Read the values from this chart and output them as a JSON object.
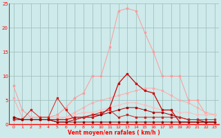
{
  "x": [
    0,
    1,
    2,
    3,
    4,
    5,
    6,
    7,
    8,
    9,
    10,
    11,
    12,
    13,
    14,
    15,
    16,
    17,
    18,
    19,
    20,
    21,
    22,
    23
  ],
  "line_pink_top": [
    8.0,
    3.0,
    1.5,
    1.5,
    1.5,
    2.0,
    3.5,
    5.5,
    6.5,
    10.0,
    10.0,
    16.0,
    23.5,
    24.0,
    23.5,
    19.0,
    15.0,
    10.0,
    10.0,
    10.0,
    5.0,
    5.0,
    2.0,
    2.0
  ],
  "line_pink_mid": [
    5.5,
    1.5,
    1.5,
    1.5,
    1.5,
    1.5,
    1.5,
    2.5,
    3.5,
    4.5,
    5.0,
    5.5,
    6.0,
    6.5,
    7.0,
    7.5,
    7.5,
    7.0,
    6.0,
    5.0,
    4.5,
    3.5,
    2.5,
    2.0
  ],
  "line_pink_low": [
    1.5,
    1.0,
    1.0,
    1.0,
    1.0,
    1.0,
    1.5,
    2.0,
    2.5,
    2.5,
    3.0,
    3.5,
    4.0,
    4.5,
    4.5,
    4.0,
    3.5,
    3.0,
    3.0,
    2.5,
    2.5,
    2.0,
    2.0,
    2.0
  ],
  "line_dark_peak": [
    1.0,
    1.0,
    1.0,
    1.0,
    1.0,
    1.0,
    1.0,
    1.5,
    1.5,
    1.5,
    2.0,
    3.5,
    8.5,
    10.5,
    8.5,
    7.0,
    6.5,
    3.0,
    3.0,
    0.5,
    0.5,
    0.5,
    0.5,
    0.5
  ],
  "line_dark_flat1": [
    1.5,
    1.0,
    1.0,
    1.0,
    1.0,
    0.5,
    0.5,
    1.0,
    1.5,
    2.0,
    2.0,
    2.5,
    3.0,
    3.5,
    3.5,
    3.0,
    2.5,
    2.5,
    2.0,
    1.5,
    1.0,
    1.0,
    0.5,
    0.5
  ],
  "line_dark_bottom": [
    1.5,
    1.0,
    1.0,
    1.0,
    1.0,
    0.5,
    0.5,
    0.5,
    0.5,
    0.5,
    0.5,
    0.5,
    0.5,
    0.5,
    0.5,
    0.5,
    0.5,
    0.5,
    0.5,
    0.5,
    0.5,
    0.5,
    0.5,
    0.5
  ],
  "line_zigzag": [
    1.0,
    1.0,
    3.0,
    1.5,
    1.5,
    5.5,
    3.0,
    1.0,
    1.5,
    2.0,
    2.5,
    3.0,
    1.5,
    2.0,
    1.5,
    1.5,
    1.5,
    1.5,
    1.5,
    1.5,
    1.0,
    1.0,
    1.0,
    1.0
  ],
  "bg_color": "#ceeaea",
  "grid_color": "#9bbaba",
  "xlabel": "Vent moyen/en rafales ( km/h )",
  "xlim": [
    0,
    23
  ],
  "ylim": [
    0,
    25
  ],
  "yticks": [
    0,
    5,
    10,
    15,
    20,
    25
  ],
  "xticks": [
    0,
    1,
    2,
    3,
    4,
    5,
    6,
    7,
    8,
    9,
    10,
    11,
    12,
    13,
    14,
    15,
    16,
    17,
    18,
    19,
    20,
    21,
    22,
    23
  ]
}
